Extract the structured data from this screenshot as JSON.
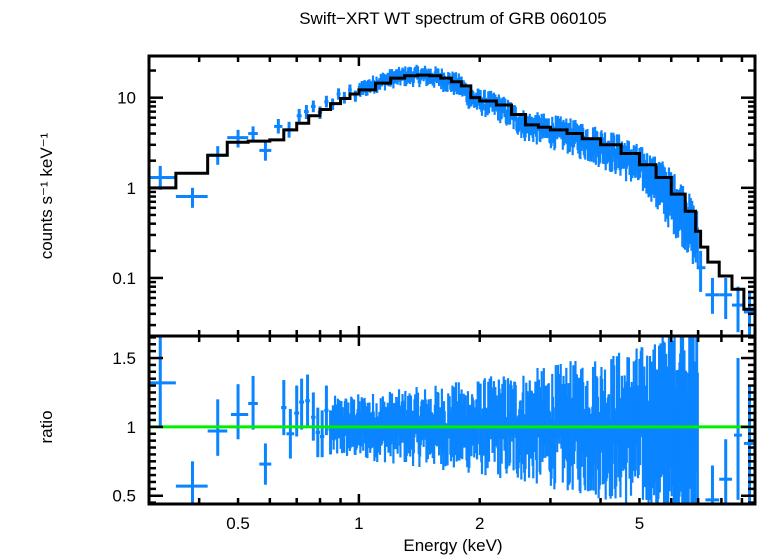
{
  "chart_data": [
    {
      "panel": "spectrum",
      "type": "scatter",
      "title": "Swift−XRT WT spectrum of GRB 060105",
      "xlabel": "Energy (keV)",
      "ylabel": "counts s⁻¹ keV⁻¹",
      "xscale": "log",
      "yscale": "log",
      "xlim": [
        0.3,
        9.7
      ],
      "ylim": [
        0.0227,
        29
      ],
      "grid": false,
      "legend": "none",
      "xticks": [
        0.5,
        1,
        2,
        5
      ],
      "xtick_labels": [
        "0.5",
        "1",
        "2",
        "5"
      ],
      "yticks": [
        0.1,
        1,
        10
      ],
      "ytick_labels": [
        "0.1",
        "1",
        "10"
      ],
      "series": [
        {
          "name": "data",
          "color": "#0a84ff",
          "style": "errorbar",
          "points": [
            {
              "x": 0.32,
              "xlo": 0.3,
              "xhi": 0.35,
              "y": 1.3,
              "ylo": 0.95,
              "yhi": 1.75
            },
            {
              "x": 0.385,
              "xlo": 0.35,
              "xhi": 0.42,
              "y": 0.8,
              "ylo": 0.6,
              "yhi": 1.0
            },
            {
              "x": 0.445,
              "xlo": 0.42,
              "xhi": 0.47,
              "y": 2.3,
              "ylo": 1.8,
              "yhi": 2.9
            },
            {
              "x": 0.5,
              "xlo": 0.47,
              "xhi": 0.53,
              "y": 3.6,
              "ylo": 2.8,
              "yhi": 4.4
            },
            {
              "x": 0.545,
              "xlo": 0.53,
              "xhi": 0.56,
              "y": 4.0,
              "ylo": 3.2,
              "yhi": 4.8
            },
            {
              "x": 0.585,
              "xlo": 0.565,
              "xhi": 0.605,
              "y": 2.6,
              "ylo": 2.0,
              "yhi": 3.2
            },
            {
              "x": 0.63,
              "xlo": 0.615,
              "xhi": 0.645,
              "y": 4.8,
              "ylo": 4.0,
              "yhi": 5.8
            },
            {
              "x": 0.67,
              "xlo": 0.655,
              "xhi": 0.685,
              "y": 4.4,
              "ylo": 3.6,
              "yhi": 5.4
            },
            {
              "x": 0.71,
              "xlo": 0.7,
              "xhi": 0.72,
              "y": 6.3,
              "ylo": 5.3,
              "yhi": 7.5
            },
            {
              "x": 0.74,
              "xlo": 0.73,
              "xhi": 0.75,
              "y": 7.0,
              "ylo": 5.8,
              "yhi": 8.3
            },
            {
              "x": 0.77,
              "xlo": 0.76,
              "xhi": 0.78,
              "y": 8.0,
              "ylo": 6.9,
              "yhi": 9.3
            },
            {
              "x": 0.8,
              "xlo": 0.79,
              "xhi": 0.81,
              "y": 6.9,
              "ylo": 5.8,
              "yhi": 8.0
            },
            {
              "x": 0.83,
              "xlo": 0.82,
              "xhi": 0.84,
              "y": 9.0,
              "ylo": 7.8,
              "yhi": 10.5
            },
            {
              "x": 0.86,
              "xlo": 0.85,
              "xhi": 0.87,
              "y": 8.5,
              "ylo": 7.3,
              "yhi": 9.8
            },
            {
              "x": 0.89,
              "xlo": 0.88,
              "xhi": 0.9,
              "y": 11.0,
              "ylo": 9.5,
              "yhi": 12.7
            },
            {
              "x": 0.92,
              "xlo": 0.91,
              "xhi": 0.93,
              "y": 10.0,
              "ylo": 8.6,
              "yhi": 11.6
            },
            {
              "x": 0.95,
              "xlo": 0.94,
              "xhi": 0.96,
              "y": 12.2,
              "ylo": 10.6,
              "yhi": 14.0
            },
            {
              "x": 0.98,
              "xlo": 0.97,
              "xhi": 0.99,
              "y": 10.5,
              "ylo": 9.0,
              "yhi": 12.0
            }
          ]
        },
        {
          "name": "data-dense",
          "color": "#0a84ff",
          "style": "errorbar-dense",
          "x_range": [
            1.0,
            7.0
          ],
          "note": "dense unresolved bins following the model with ~25% scatter"
        },
        {
          "name": "data-high",
          "color": "#0a84ff",
          "style": "errorbar",
          "points": [
            {
              "x": 7.1,
              "xlo": 7.0,
              "xhi": 7.3,
              "y": 0.13,
              "ylo": 0.07,
              "yhi": 0.2
            },
            {
              "x": 7.6,
              "xlo": 7.3,
              "xhi": 7.9,
              "y": 0.065,
              "ylo": 0.04,
              "yhi": 0.1
            },
            {
              "x": 8.2,
              "xlo": 7.9,
              "xhi": 8.5,
              "y": 0.065,
              "ylo": 0.035,
              "yhi": 0.1
            },
            {
              "x": 8.8,
              "xlo": 8.5,
              "xhi": 9.1,
              "y": 0.05,
              "ylo": 0.025,
              "yhi": 0.08
            },
            {
              "x": 9.4,
              "xlo": 9.1,
              "xhi": 9.7,
              "y": 0.042,
              "ylo": 0.022,
              "yhi": 0.07
            }
          ]
        },
        {
          "name": "model",
          "color": "#000000",
          "style": "step",
          "points": [
            [
              0.3,
              1.0
            ],
            [
              0.35,
              1.45
            ],
            [
              0.42,
              2.3
            ],
            [
              0.47,
              3.2
            ],
            [
              0.53,
              3.3
            ],
            [
              0.6,
              3.4
            ],
            [
              0.65,
              4.4
            ],
            [
              0.7,
              5.2
            ],
            [
              0.75,
              6.3
            ],
            [
              0.8,
              7.4
            ],
            [
              0.85,
              8.6
            ],
            [
              0.9,
              9.8
            ],
            [
              0.95,
              11.0
            ],
            [
              1.0,
              12.2
            ],
            [
              1.1,
              14.5
            ],
            [
              1.2,
              16.5
            ],
            [
              1.3,
              17.5
            ],
            [
              1.4,
              17.8
            ],
            [
              1.5,
              17.5
            ],
            [
              1.6,
              16.5
            ],
            [
              1.7,
              15.0
            ],
            [
              1.8,
              13.5
            ],
            [
              1.9,
              10.0
            ],
            [
              2.0,
              9.2
            ],
            [
              2.2,
              8.3
            ],
            [
              2.4,
              6.5
            ],
            [
              2.6,
              5.0
            ],
            [
              2.8,
              4.7
            ],
            [
              3.0,
              4.4
            ],
            [
              3.3,
              4.0
            ],
            [
              3.6,
              3.5
            ],
            [
              4.0,
              3.0
            ],
            [
              4.5,
              2.4
            ],
            [
              5.0,
              1.8
            ],
            [
              5.5,
              1.3
            ],
            [
              6.0,
              0.85
            ],
            [
              6.5,
              0.55
            ],
            [
              6.9,
              0.33
            ],
            [
              7.1,
              0.22
            ],
            [
              7.4,
              0.15
            ],
            [
              7.9,
              0.105
            ],
            [
              8.5,
              0.075
            ],
            [
              9.1,
              0.045
            ],
            [
              9.7,
              0.045
            ]
          ]
        }
      ]
    },
    {
      "panel": "ratio",
      "type": "scatter",
      "xlabel": "Energy (keV)",
      "ylabel": "ratio",
      "xscale": "log",
      "yscale": "linear",
      "xlim": [
        0.3,
        9.7
      ],
      "ylim": [
        0.44,
        1.66
      ],
      "grid": false,
      "legend": "none",
      "xticks": [
        0.5,
        1,
        2,
        5
      ],
      "xtick_labels": [
        "0.5",
        "1",
        "2",
        "5"
      ],
      "yticks": [
        0.5,
        1,
        1.5
      ],
      "ytick_labels": [
        "0.5",
        "1",
        "1.5"
      ],
      "reference_line": {
        "y": 1,
        "color": "#00ee00"
      },
      "series": [
        {
          "name": "ratio",
          "color": "#0a84ff",
          "style": "errorbar",
          "points": [
            {
              "x": 0.32,
              "xlo": 0.3,
              "xhi": 0.35,
              "y": 1.32,
              "ylo": 1.0,
              "yhi": 1.66
            },
            {
              "x": 0.385,
              "xlo": 0.35,
              "xhi": 0.42,
              "y": 0.57,
              "ylo": 0.44,
              "yhi": 0.75
            },
            {
              "x": 0.445,
              "xlo": 0.42,
              "xhi": 0.47,
              "y": 0.97,
              "ylo": 0.79,
              "yhi": 1.2
            },
            {
              "x": 0.5,
              "xlo": 0.48,
              "xhi": 0.53,
              "y": 1.09,
              "ylo": 0.91,
              "yhi": 1.31
            },
            {
              "x": 0.545,
              "xlo": 0.53,
              "xhi": 0.56,
              "y": 1.17,
              "ylo": 0.98,
              "yhi": 1.37
            },
            {
              "x": 0.585,
              "xlo": 0.565,
              "xhi": 0.605,
              "y": 0.73,
              "ylo": 0.58,
              "yhi": 0.88
            },
            {
              "x": 0.65,
              "xlo": 0.64,
              "xhi": 0.66,
              "y": 1.14,
              "ylo": 0.94,
              "yhi": 1.34
            },
            {
              "x": 0.675,
              "xlo": 0.66,
              "xhi": 0.69,
              "y": 0.95,
              "ylo": 0.77,
              "yhi": 1.13
            },
            {
              "x": 0.7,
              "xlo": 0.69,
              "xhi": 0.71,
              "y": 1.1,
              "ylo": 0.93,
              "yhi": 1.3
            },
            {
              "x": 0.72,
              "xlo": 0.71,
              "xhi": 0.73,
              "y": 1.18,
              "ylo": 0.98,
              "yhi": 1.35
            },
            {
              "x": 0.745,
              "xlo": 0.735,
              "xhi": 0.755,
              "y": 1.19,
              "ylo": 1.01,
              "yhi": 1.38
            },
            {
              "x": 0.77,
              "xlo": 0.76,
              "xhi": 0.78,
              "y": 1.07,
              "ylo": 0.9,
              "yhi": 1.25
            },
            {
              "x": 0.79,
              "xlo": 0.78,
              "xhi": 0.8,
              "y": 0.96,
              "ylo": 0.78,
              "yhi": 1.14
            },
            {
              "x": 0.81,
              "xlo": 0.8,
              "xhi": 0.82,
              "y": 0.93,
              "ylo": 0.78,
              "yhi": 1.12
            },
            {
              "x": 0.83,
              "xlo": 0.82,
              "xhi": 0.84,
              "y": 1.12,
              "ylo": 0.94,
              "yhi": 1.3
            },
            {
              "x": 0.85,
              "xlo": 0.84,
              "xhi": 0.86,
              "y": 0.98,
              "ylo": 0.8,
              "yhi": 1.12
            }
          ]
        },
        {
          "name": "ratio-dense",
          "color": "#0a84ff",
          "style": "errorbar-dense",
          "x_range": [
            0.86,
            7.0
          ],
          "note": "dense unresolved bins scattered around 1 (~0.55-1.66)"
        },
        {
          "name": "ratio-high",
          "color": "#0a84ff",
          "style": "errorbar",
          "points": [
            {
              "x": 7.6,
              "xlo": 7.3,
              "xhi": 7.9,
              "y": 0.47,
              "ylo": 0.44,
              "yhi": 0.72
            },
            {
              "x": 8.2,
              "xlo": 7.9,
              "xhi": 8.5,
              "y": 0.62,
              "ylo": 0.44,
              "yhi": 0.91
            },
            {
              "x": 8.8,
              "xlo": 8.6,
              "xhi": 9.0,
              "y": 0.94,
              "ylo": 0.47,
              "yhi": 1.5
            },
            {
              "x": 9.4,
              "xlo": 9.1,
              "xhi": 9.7,
              "y": 0.88,
              "ylo": 0.45,
              "yhi": 1.3
            }
          ]
        }
      ]
    }
  ]
}
